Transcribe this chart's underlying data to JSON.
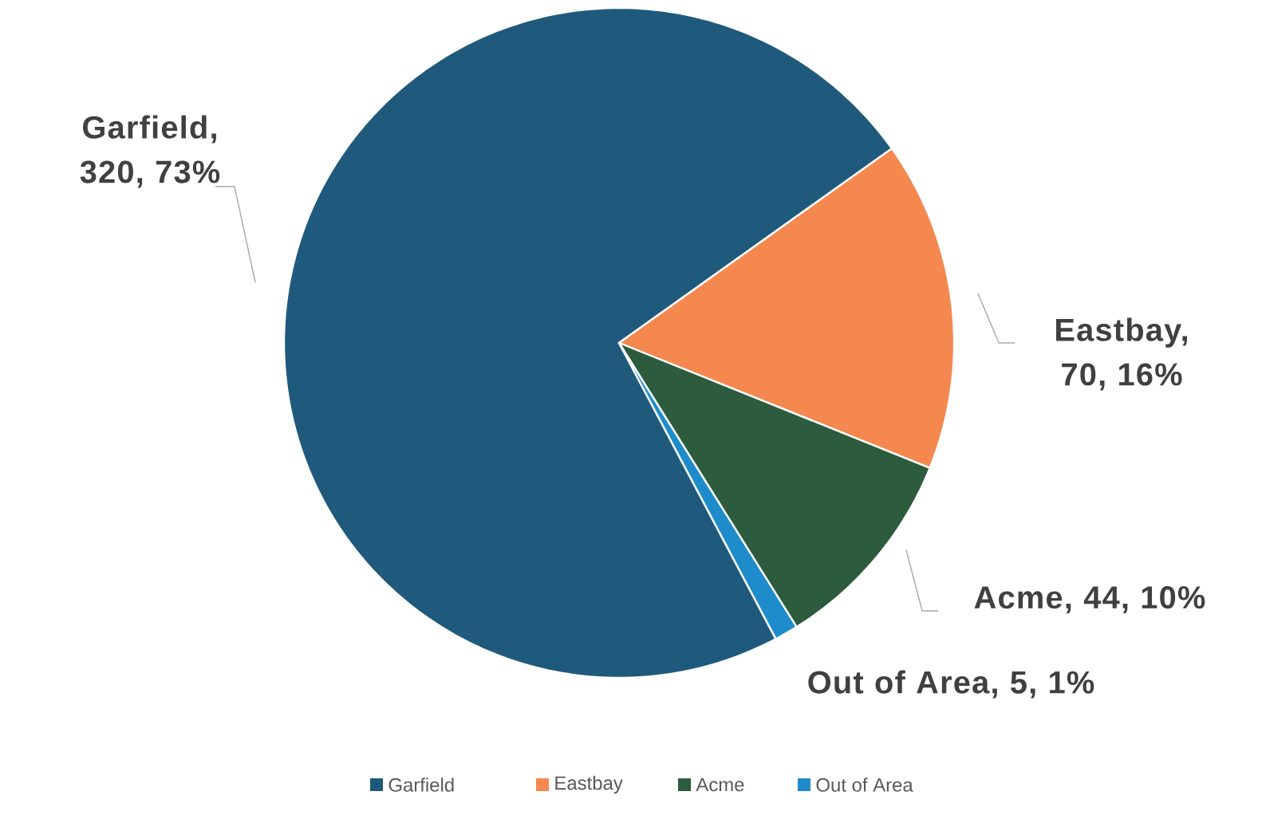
{
  "chart_data": {
    "type": "pie",
    "categories": [
      "Garfield",
      "Eastbay",
      "Acme",
      "Out of Area"
    ],
    "values": [
      320,
      70,
      44,
      5
    ],
    "colors": [
      "#1f5a7d",
      "#f4884f",
      "#2c5b3d",
      "#1e8ccb"
    ],
    "value_labels": [
      "Garfield, 320, 73%",
      "Eastbay, 70, 16%",
      "Acme, 44, 10%",
      "Out of Area, 5, 1%"
    ],
    "legend": "bottom"
  }
}
